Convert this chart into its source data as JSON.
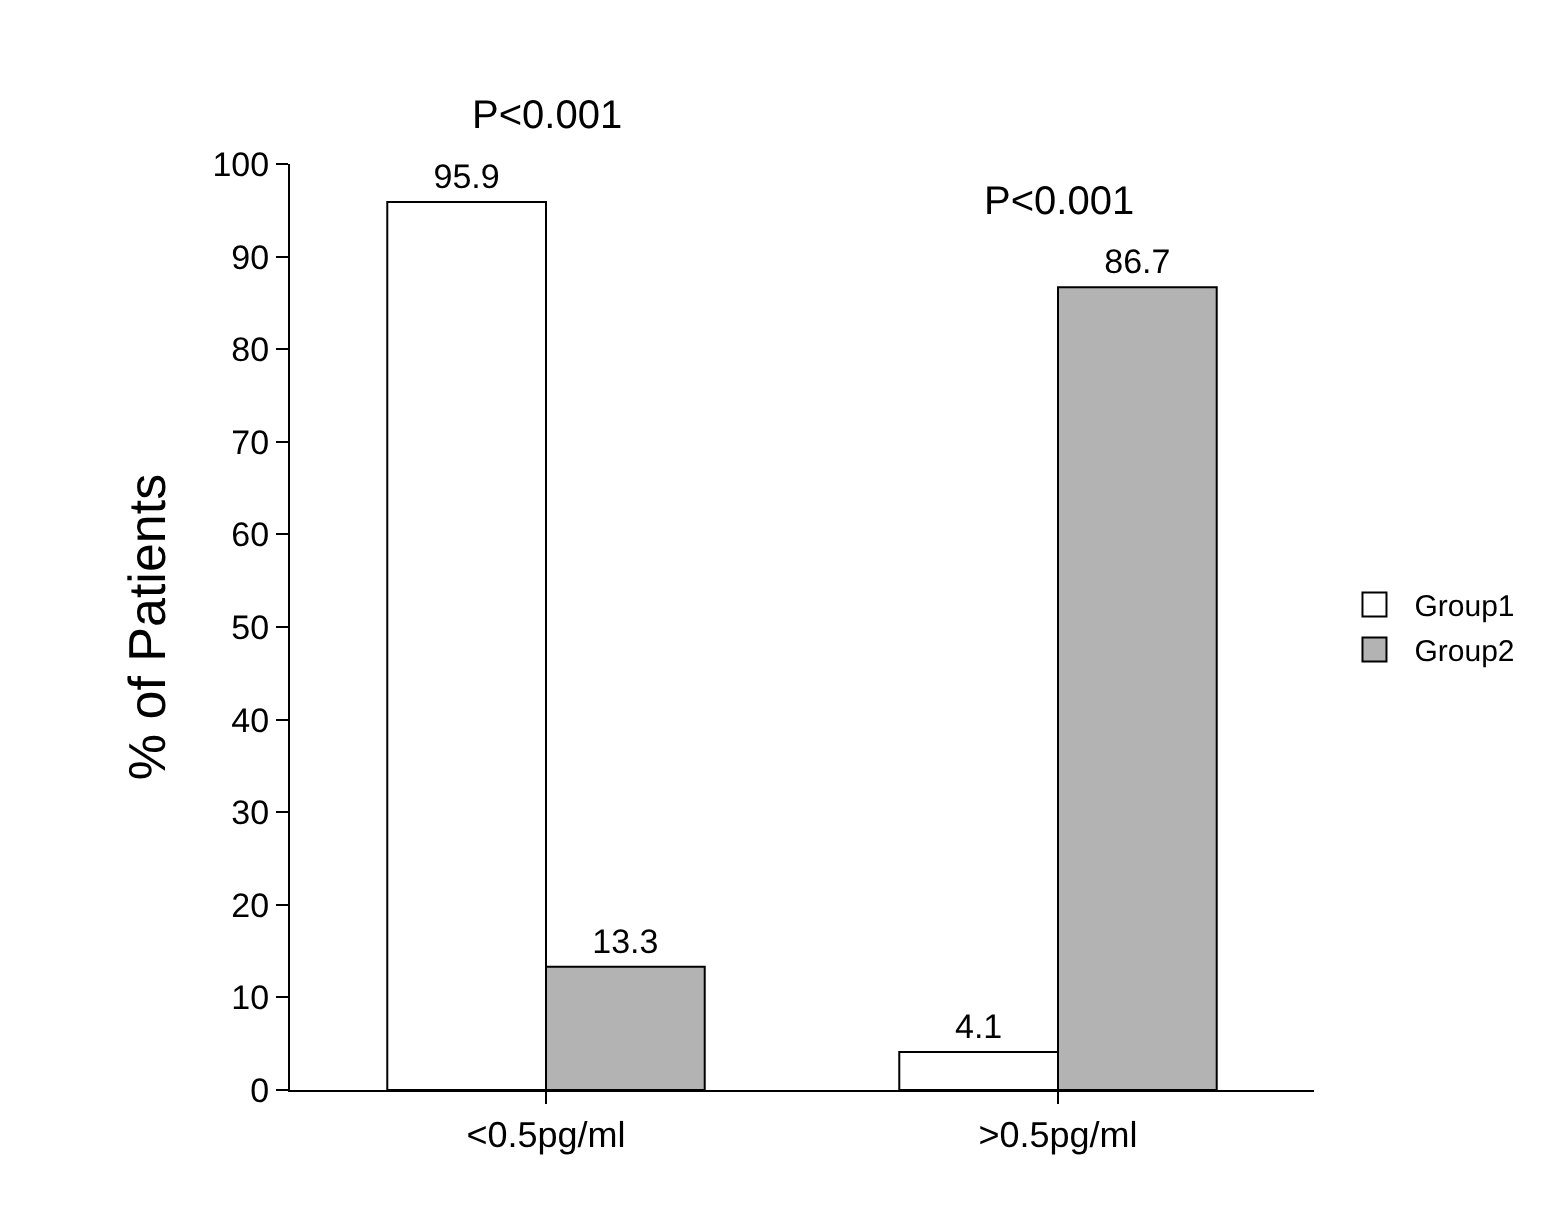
{
  "chart_data": {
    "type": "bar",
    "ylabel": "% of Patients",
    "categories": [
      "<0.5pg/ml",
      ">0.5pg/ml"
    ],
    "series": [
      {
        "name": "Group1",
        "color": "#ffffff",
        "values": [
          95.9,
          4.1
        ]
      },
      {
        "name": "Group2",
        "color": "#b3b3b3",
        "values": [
          13.3,
          86.7
        ]
      }
    ],
    "ylim": [
      0,
      100
    ],
    "yticks": [
      0,
      10,
      20,
      30,
      40,
      50,
      60,
      70,
      80,
      90,
      100
    ],
    "data_labels": true,
    "legend": "right",
    "annotations": [
      "P<0.001",
      "P<0.001"
    ]
  }
}
